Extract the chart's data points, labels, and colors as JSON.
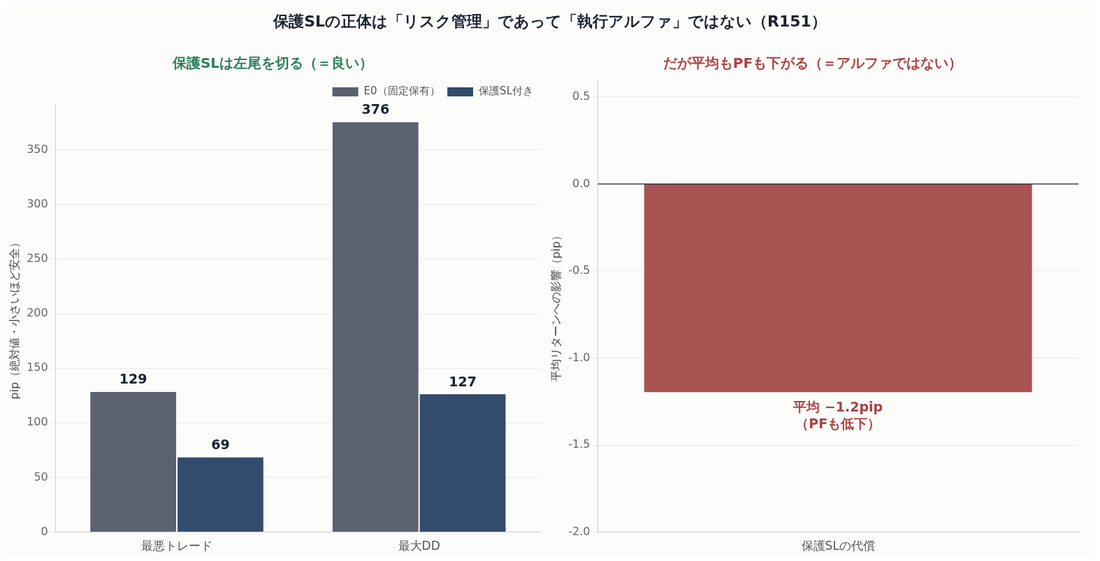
{
  "chart_data": [
    {
      "type": "bar",
      "title": "保護SLの正体は「リスク管理」であって「執行アルファ」ではない（R151）",
      "subtitle": "保護SLは左尾を切る（＝良い）",
      "ylabel": "pip（絶対値・小さいほど安全）",
      "categories": [
        "最悪トレード",
        "最大DD"
      ],
      "series": [
        {
          "name": "E0（固定保有）",
          "color": "#5b6170",
          "values": [
            129,
            376
          ]
        },
        {
          "name": "保護SL付き",
          "color": "#344c6c",
          "values": [
            69,
            127
          ]
        }
      ],
      "ylim": [
        0,
        392
      ],
      "yticks": [
        0,
        50,
        100,
        150,
        200,
        250,
        300,
        350
      ],
      "grid": "y",
      "legend": "top right",
      "data_labels": true
    },
    {
      "type": "bar",
      "title": "だが平均もPFも下がる（＝アルファではない）",
      "ylabel": "平均リターンへの影響（pip）",
      "categories": [
        "保護SLの代償"
      ],
      "series": [
        {
          "color": "#a85252",
          "values": [
            -1.2
          ]
        }
      ],
      "ylim": [
        -2.0,
        0.6
      ],
      "yticks": [
        {
          "value": -2.0,
          "label": "-2.0"
        },
        {
          "value": -1.5,
          "label": "-1.5"
        },
        {
          "value": -1.0,
          "label": "-1.0"
        },
        {
          "value": -0.5,
          "label": "-0.5"
        },
        {
          "value": 0,
          "label": "0.0"
        },
        {
          "value": 0.5,
          "label": "0.5"
        }
      ],
      "grid": "y",
      "ref_lines": [
        {
          "axis": "y",
          "value": 0,
          "color": "#1a2233"
        }
      ],
      "annotations": [
        {
          "text": "平均 −1.2pip\n（PFも低下）",
          "x": "保護SLの代償",
          "y": -1.2
        }
      ]
    }
  ]
}
